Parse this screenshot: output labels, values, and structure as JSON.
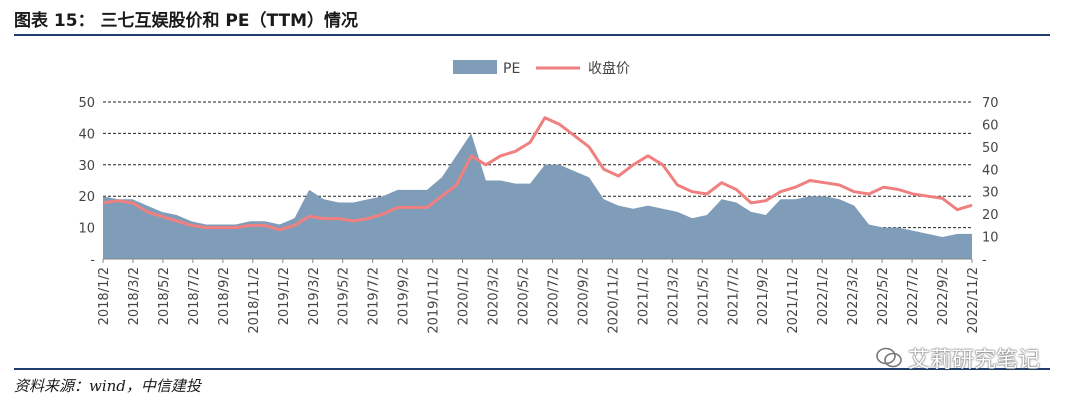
{
  "figure": {
    "title": "图表 15：  三七互娱股价和 PE（TTM）情况",
    "source": "资料来源：wind，中信建投",
    "watermark": "艾莉研究笔记"
  },
  "chart_data": {
    "type": "area",
    "title": "",
    "legend": {
      "placement": "top-center"
    },
    "series": [
      {
        "name": "PE",
        "chart": "area",
        "axis": "left",
        "color": "#7f9db9"
      },
      {
        "name": "收盘价",
        "chart": "line",
        "axis": "right",
        "color": "#f08080"
      }
    ],
    "ylim_left": [
      0,
      50
    ],
    "yticks_left": [
      "-",
      "10",
      "20",
      "30",
      "40",
      "50"
    ],
    "ylim_right": [
      0,
      70
    ],
    "yticks_right": [
      "-",
      "10",
      "20",
      "30",
      "40",
      "50",
      "60",
      "70"
    ],
    "grid": "dashed horizontal",
    "x_ticks": [
      "2018/1/2",
      "2018/3/2",
      "2018/5/2",
      "2018/7/2",
      "2018/9/2",
      "2018/11/2",
      "2019/1/2",
      "2019/3/2",
      "2019/5/2",
      "2019/7/2",
      "2019/9/2",
      "2019/11/2",
      "2020/1/2",
      "2020/3/2",
      "2020/5/2",
      "2020/7/2",
      "2020/9/2",
      "2020/11/2",
      "2021/1/2",
      "2021/3/2",
      "2021/5/2",
      "2021/7/2",
      "2021/9/2",
      "2021/11/2",
      "2022/1/2",
      "2022/3/2",
      "2022/5/2",
      "2022/7/2",
      "2022/9/2",
      "2022/11/2"
    ],
    "x": [
      "2018/1",
      "2018/2",
      "2018/3",
      "2018/4",
      "2018/5",
      "2018/6",
      "2018/7",
      "2018/8",
      "2018/9",
      "2018/10",
      "2018/11",
      "2018/12",
      "2019/1",
      "2019/2",
      "2019/3",
      "2019/4",
      "2019/5",
      "2019/6",
      "2019/7",
      "2019/8",
      "2019/9",
      "2019/10",
      "2019/11",
      "2019/12",
      "2020/1",
      "2020/2",
      "2020/3",
      "2020/4",
      "2020/5",
      "2020/6",
      "2020/7",
      "2020/8",
      "2020/9",
      "2020/10",
      "2020/11",
      "2020/12",
      "2021/1",
      "2021/2",
      "2021/3",
      "2021/4",
      "2021/5",
      "2021/6",
      "2021/7",
      "2021/8",
      "2021/9",
      "2021/10",
      "2021/11",
      "2021/12",
      "2022/1",
      "2022/2",
      "2022/3",
      "2022/4",
      "2022/5",
      "2022/6",
      "2022/7",
      "2022/8",
      "2022/9",
      "2022/10",
      "2022/11",
      "2022/12"
    ],
    "pe": [
      20,
      19,
      19,
      17,
      15,
      14,
      12,
      11,
      11,
      11,
      12,
      12,
      11,
      13,
      22,
      19,
      18,
      18,
      19,
      20,
      22,
      22,
      22,
      26,
      33,
      40,
      25,
      25,
      24,
      24,
      30,
      30,
      28,
      26,
      19,
      17,
      16,
      17,
      16,
      15,
      13,
      14,
      19,
      18,
      15,
      14,
      19,
      19,
      20,
      20,
      19,
      17,
      11,
      10,
      10,
      9,
      8,
      7,
      8,
      8
    ],
    "price": [
      25,
      26,
      25,
      21,
      19,
      17,
      15,
      14,
      14,
      14,
      15,
      15,
      13,
      15,
      19,
      18,
      18,
      17,
      18,
      20,
      23,
      23,
      23,
      28,
      33,
      46,
      42,
      46,
      48,
      52,
      63,
      60,
      55,
      50,
      40,
      37,
      42,
      46,
      42,
      33,
      30,
      29,
      34,
      31,
      25,
      26,
      30,
      32,
      35,
      34,
      33,
      30,
      29,
      32,
      31,
      29,
      28,
      27,
      22,
      24
    ]
  }
}
